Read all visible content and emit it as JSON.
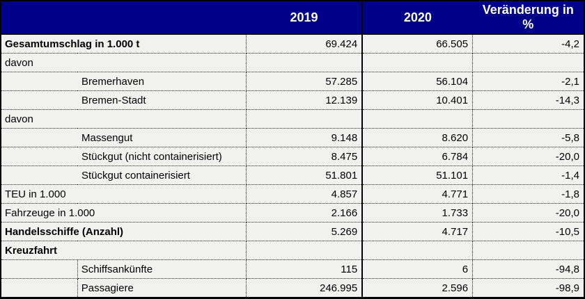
{
  "header": {
    "label": "",
    "col_2019": "2019",
    "col_2020": "2020",
    "col_change": "Veränderung in %"
  },
  "rows": [
    {
      "name": "gesamtumschlag",
      "label": "Gesamtumschlag in 1.000 t",
      "style": "bold",
      "indent": 0,
      "v2019": "69.424",
      "v2020": "66.505",
      "change": "-4,2"
    },
    {
      "name": "davon-1",
      "label": "davon",
      "style": "regular",
      "indent": 0,
      "v2019": "",
      "v2020": "",
      "change": ""
    },
    {
      "name": "bremerhaven",
      "label": "Bremerhaven",
      "style": "regular",
      "indent": 1,
      "v2019": "57.285",
      "v2020": "56.104",
      "change": "-2,1"
    },
    {
      "name": "bremen-stadt",
      "label": "Bremen-Stadt",
      "style": "regular",
      "indent": 1,
      "v2019": "12.139",
      "v2020": "10.401",
      "change": "-14,3"
    },
    {
      "name": "davon-2",
      "label": "davon",
      "style": "regular",
      "indent": 0,
      "v2019": "",
      "v2020": "",
      "change": ""
    },
    {
      "name": "massengut",
      "label": "Massengut",
      "style": "regular",
      "indent": 1,
      "v2019": "9.148",
      "v2020": "8.620",
      "change": "-5,8"
    },
    {
      "name": "stueckgut-nicht-containerisiert",
      "label": "Stückgut (nicht containerisiert)",
      "style": "regular",
      "indent": 1,
      "v2019": "8.475",
      "v2020": "6.784",
      "change": "-20,0"
    },
    {
      "name": "stueckgut-containerisiert",
      "label": "Stückgut containerisiert",
      "style": "regular",
      "indent": 1,
      "v2019": "51.801",
      "v2020": "51.101",
      "change": "-1,4"
    },
    {
      "name": "teu",
      "label": "TEU in 1.000",
      "style": "regular",
      "indent": 0,
      "v2019": "4.857",
      "v2020": "4.771",
      "change": "-1,8"
    },
    {
      "name": "fahrzeuge",
      "label": "Fahrzeuge in 1.000",
      "style": "regular",
      "indent": 0,
      "v2019": "2.166",
      "v2020": "1.733",
      "change": "-20,0"
    },
    {
      "name": "handelsschiffe",
      "label": "Handelsschiffe (Anzahl)",
      "style": "bold",
      "indent": 0,
      "v2019": "5.269",
      "v2020": "4.717",
      "change": "-10,5"
    },
    {
      "name": "kreuzfahrt",
      "label": "Kreuzfahrt",
      "style": "bold",
      "indent": 0,
      "v2019": "",
      "v2020": "",
      "change": ""
    },
    {
      "name": "schiffsankuenfte",
      "label": "Schiffsankünfte",
      "style": "regular",
      "indent": 2,
      "v2019": "115",
      "v2020": "6",
      "change": "-94,8"
    },
    {
      "name": "passagiere",
      "label": "Passagiere",
      "style": "regular",
      "indent": 2,
      "v2019": "246.995",
      "v2020": "2.596",
      "change": "-98,9"
    }
  ],
  "colors": {
    "header_bg": "#01018a",
    "header_text": "#ffffff",
    "body_bg": "#f1f1f0",
    "border": "#000000",
    "dotted": "#222222"
  }
}
